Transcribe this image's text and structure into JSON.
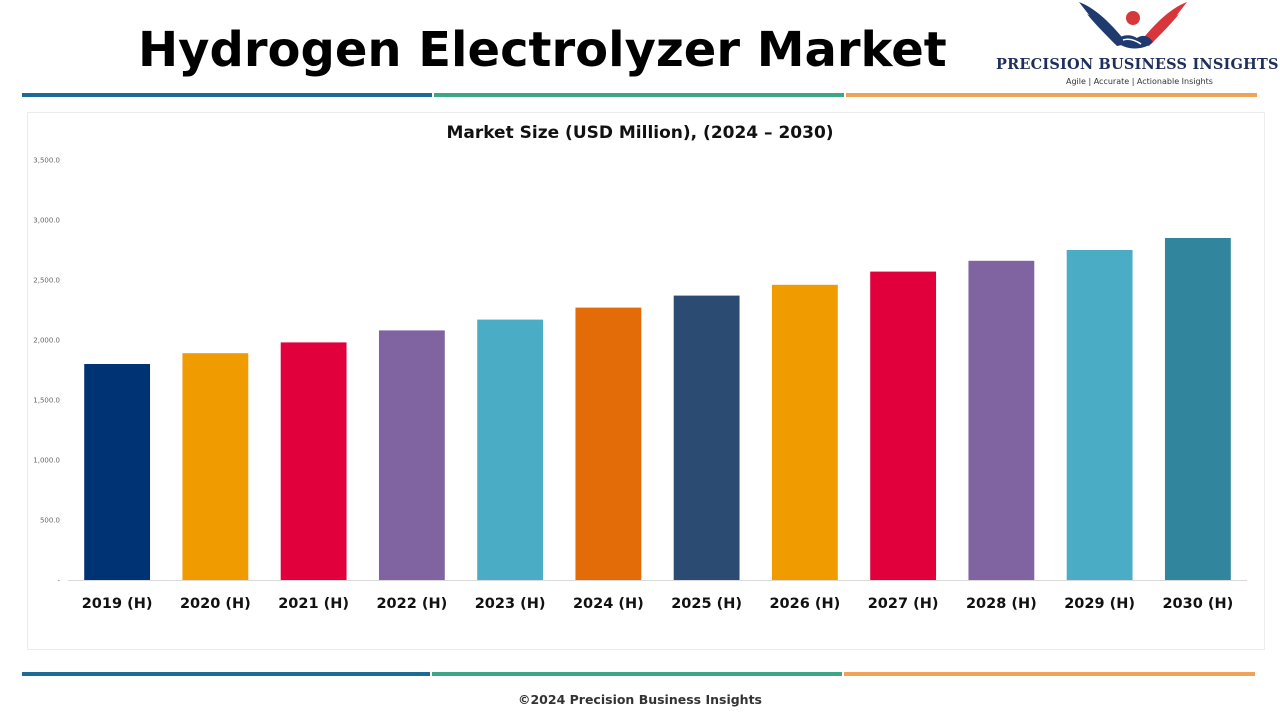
{
  "header": {
    "title": "Hydrogen Electrolyzer Market"
  },
  "logo": {
    "name": "PRECISION BUSINESS INSIGHTS",
    "tagline": "Agile | Accurate | Actionable Insights"
  },
  "colors": {
    "stripe_blue": "#1d6b92",
    "stripe_green": "#3ea585",
    "stripe_orange": "#eea25a"
  },
  "footer": {
    "text": "©2024 Precision Business Insights"
  },
  "chart_data": {
    "type": "bar",
    "title": "Market Size (USD Million), (2024 – 2030)",
    "xlabel": "",
    "ylabel": "",
    "categories": [
      "2019 (H)",
      "2020 (H)",
      "2021 (H)",
      "2022 (H)",
      "2023 (H)",
      "2024 (H)",
      "2025 (H)",
      "2026 (H)",
      "2027 (H)",
      "2028 (H)",
      "2029 (H)",
      "2030 (H)"
    ],
    "values": [
      1800,
      1890,
      1980,
      2080,
      2170,
      2270,
      2370,
      2460,
      2570,
      2660,
      2750,
      2850
    ],
    "colors": [
      "#003374",
      "#f09b00",
      "#e2003c",
      "#8064a2",
      "#4bacc6",
      "#e36c09",
      "#2b4b72",
      "#f09b00",
      "#e2003c",
      "#8064a2",
      "#4bacc6",
      "#31859c"
    ],
    "ylim": [
      0,
      3500
    ],
    "yticks": [
      0,
      500,
      1000,
      1500,
      2000,
      2500,
      3000,
      3500
    ],
    "ytick_labels": [
      "-",
      "500.0",
      "1,000.0",
      "1,500.0",
      "2,000.0",
      "2,500.0",
      "3,000.0",
      "3,500.0"
    ],
    "grid": false,
    "legend": "none"
  }
}
